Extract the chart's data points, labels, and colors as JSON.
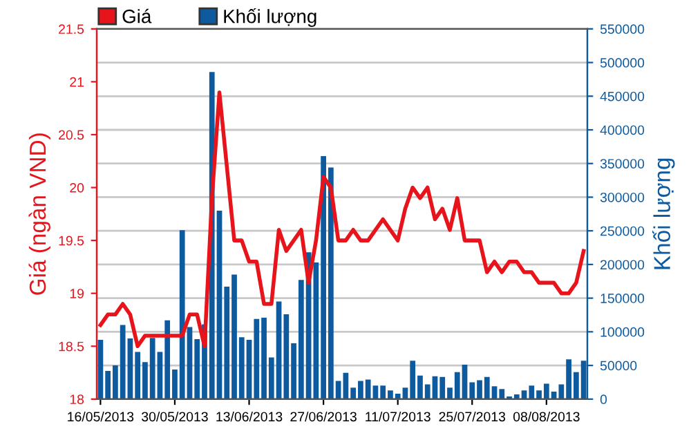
{
  "chart_data": {
    "type": "line",
    "categories": [
      "16/05/2013",
      null,
      null,
      null,
      null,
      null,
      null,
      null,
      null,
      null,
      "30/05/2013",
      null,
      null,
      null,
      null,
      null,
      null,
      null,
      null,
      null,
      "13/06/2013",
      null,
      null,
      null,
      null,
      null,
      null,
      null,
      null,
      null,
      "27/06/2013",
      null,
      null,
      null,
      null,
      null,
      null,
      null,
      null,
      null,
      "11/07/2013",
      null,
      null,
      null,
      null,
      null,
      null,
      null,
      null,
      null,
      "25/07/2013",
      null,
      null,
      null,
      null,
      null,
      null,
      null,
      null,
      null,
      "08/08/2013",
      null,
      null,
      null,
      null,
      null
    ],
    "series": [
      {
        "name": "Giá",
        "color": "#e8141b",
        "values": [
          18.7,
          18.8,
          18.8,
          18.9,
          18.8,
          18.5,
          18.6,
          18.6,
          18.6,
          18.6,
          18.6,
          18.6,
          18.8,
          18.8,
          18.5,
          19.9,
          20.9,
          20.2,
          19.5,
          19.5,
          19.3,
          19.3,
          18.9,
          18.9,
          19.6,
          19.4,
          19.5,
          19.6,
          19.1,
          19.5,
          20.1,
          20.0,
          19.5,
          19.5,
          19.6,
          19.5,
          19.5,
          19.6,
          19.7,
          19.6,
          19.5,
          19.8,
          20.0,
          19.9,
          20.0,
          19.7,
          19.8,
          19.6,
          19.9,
          19.5,
          19.5,
          19.5,
          19.2,
          19.3,
          19.2,
          19.3,
          19.3,
          19.2,
          19.2,
          19.1,
          19.1,
          19.1,
          19.0,
          19.0,
          19.1,
          19.4
        ]
      },
      {
        "name": "Khối lượng",
        "type": "bar",
        "axis": "y2",
        "color": "#0e5a9e",
        "values": [
          88000,
          42000,
          50000,
          110000,
          90000,
          70000,
          55000,
          91000,
          70000,
          117000,
          44000,
          251000,
          107000,
          89000,
          111000,
          486000,
          280000,
          167000,
          185000,
          92000,
          88000,
          119000,
          121000,
          62000,
          145000,
          126000,
          83000,
          177000,
          218000,
          203000,
          361000,
          344000,
          27000,
          39000,
          17000,
          27000,
          29000,
          20000,
          20000,
          13000,
          8000,
          17000,
          57000,
          35000,
          22000,
          34000,
          33000,
          17000,
          40000,
          51000,
          25000,
          28000,
          33000,
          19000,
          15000,
          4000,
          7000,
          13000,
          20000,
          13000,
          23000,
          11000,
          22000,
          59000,
          40000,
          57000
        ]
      }
    ],
    "ylabel": "Giá (ngàn VND)",
    "y2label": "Khối lượng",
    "ylim": [
      18,
      21.5
    ],
    "yticks": [
      18,
      18.5,
      19,
      19.5,
      20,
      20.5,
      21,
      21.5
    ],
    "y2lim": [
      0,
      550000
    ],
    "y2ticks": [
      0,
      50000,
      100000,
      150000,
      200000,
      250000,
      300000,
      350000,
      400000,
      450000,
      500000,
      550000
    ],
    "grid": "y",
    "legend": "top left"
  }
}
